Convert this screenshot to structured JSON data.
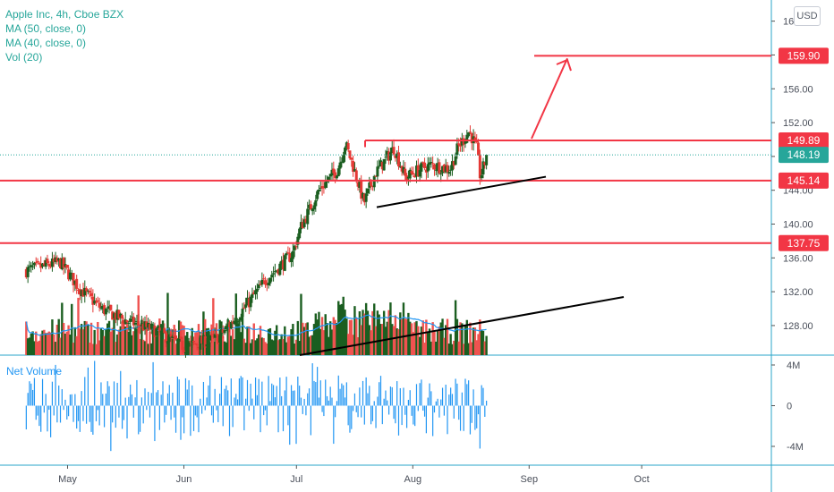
{
  "legend": {
    "symbol": "Apple Inc, 4h, Cboe BZX",
    "ma50": "MA (50, close, 0)",
    "ma40": "MA (40, close, 0)",
    "vol": "Vol (20)"
  },
  "currency": "USD",
  "net_volume_title": "Net Volume",
  "colors": {
    "up": "#1b5e20",
    "down": "#e53935",
    "vol_up": "#1b5e20",
    "vol_down": "#ef5350",
    "level_line": "#f23645",
    "trend_line": "#000000",
    "ma": "#2196f3",
    "net_volume": "#2196f3",
    "last_price": "#26a69a"
  },
  "chart_data": [
    {
      "type": "candlestick",
      "title": "Apple Inc, 4h, Cboe BZX",
      "x_ticks": [
        "May",
        "Jun",
        "Jul",
        "Aug",
        "Sep",
        "Oct"
      ],
      "y_ticks": [
        "164.00",
        "160.00",
        "156.00",
        "152.00",
        "148.00",
        "144.00",
        "140.00",
        "136.00",
        "132.00",
        "128.00"
      ],
      "ylim": [
        124.5,
        166.5
      ],
      "price_levels": [
        {
          "label": "159.90",
          "value": 159.9
        },
        {
          "label": "149.89",
          "value": 149.89
        },
        {
          "label": "145.14",
          "value": 145.14
        },
        {
          "label": "137.75",
          "value": 137.75
        }
      ],
      "last_price": {
        "label": "148.19",
        "value": 148.19
      },
      "close_path_keypoints": [
        {
          "date": "2021-04-20",
          "close": 134.5
        },
        {
          "date": "2021-04-29",
          "close": 135.5
        },
        {
          "date": "2021-05-04",
          "close": 132.5
        },
        {
          "date": "2021-05-10",
          "close": 130.0
        },
        {
          "date": "2021-05-17",
          "close": 128.5
        },
        {
          "date": "2021-05-24",
          "close": 127.5
        },
        {
          "date": "2021-06-01",
          "close": 125.5
        },
        {
          "date": "2021-06-10",
          "close": 126.5
        },
        {
          "date": "2021-06-17",
          "close": 130.0
        },
        {
          "date": "2021-06-23",
          "close": 133.5
        },
        {
          "date": "2021-06-30",
          "close": 136.5
        },
        {
          "date": "2021-07-02",
          "close": 139.5
        },
        {
          "date": "2021-07-07",
          "close": 144.0
        },
        {
          "date": "2021-07-12",
          "close": 146.5
        },
        {
          "date": "2021-07-14",
          "close": 149.5
        },
        {
          "date": "2021-07-16",
          "close": 147.0
        },
        {
          "date": "2021-07-19",
          "close": 142.5
        },
        {
          "date": "2021-07-22",
          "close": 146.0
        },
        {
          "date": "2021-07-27",
          "close": 149.0
        },
        {
          "date": "2021-07-30",
          "close": 145.5
        },
        {
          "date": "2021-08-03",
          "close": 146.5
        },
        {
          "date": "2021-08-06",
          "close": 147.0
        },
        {
          "date": "2021-08-11",
          "close": 146.5
        },
        {
          "date": "2021-08-13",
          "close": 149.0
        },
        {
          "date": "2021-08-16",
          "close": 151.0
        },
        {
          "date": "2021-08-18",
          "close": 149.0
        },
        {
          "date": "2021-08-19",
          "close": 145.5
        },
        {
          "date": "2021-08-20",
          "close": 147.0
        },
        {
          "date": "2021-08-21",
          "close": 148.19
        }
      ],
      "annotations": [
        {
          "type": "trendline",
          "from": {
            "date": "2021-07-19",
            "price": 142.0
          },
          "to": {
            "date": "2021-08-26",
            "price": 145.5
          }
        },
        {
          "type": "horizontal",
          "price": 149.89,
          "from_date": "2021-07-14",
          "to_date": "2021-08-26"
        },
        {
          "type": "horizontal",
          "price": 159.9,
          "from_date": "2021-08-27"
        },
        {
          "type": "arrow",
          "from": {
            "date": "2021-08-24",
            "price": 150.0
          },
          "to": {
            "date": "2021-09-02",
            "price": 159.9
          }
        }
      ]
    },
    {
      "type": "bar",
      "title": "Vol (20)",
      "description": "volume bars under price, colored by candle direction, with a rising black trendline"
    },
    {
      "type": "bar",
      "title": "Net Volume",
      "y_ticks": [
        "4M",
        "0",
        "-4M"
      ],
      "ylim": [
        -5000000,
        5000000
      ]
    }
  ]
}
